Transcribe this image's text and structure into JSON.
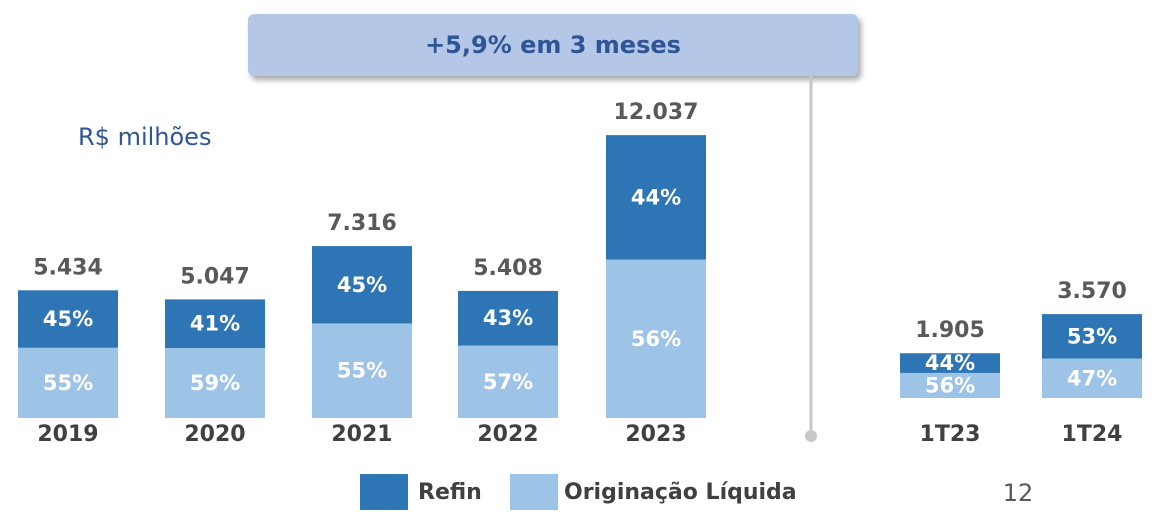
{
  "chart_data": {
    "type": "bar",
    "stacked": true,
    "callout": "+5,9% em 3 meses",
    "unit_label": "R$ milhões",
    "page_number": 12,
    "categories": [
      "2019",
      "2020",
      "2021",
      "2022",
      "2023",
      "1T23",
      "1T24"
    ],
    "totals": {
      "values": [
        5434,
        5047,
        7316,
        5408,
        12037,
        1905,
        3570
      ],
      "value_labels": [
        "5.434",
        "5.047",
        "7.316",
        "5.408",
        "12.037",
        "1.905",
        "3.570"
      ]
    },
    "series": [
      {
        "name": "Originação Líquida",
        "color": "#9dc3e6",
        "values": [
          55,
          59,
          55,
          57,
          56,
          56,
          47
        ],
        "value_labels": [
          "55%",
          "59%",
          "55%",
          "57%",
          "56%",
          "56%",
          "47%"
        ]
      },
      {
        "name": "Refin",
        "color": "#2e75b6",
        "values": [
          45,
          41,
          45,
          43,
          44,
          44,
          53
        ],
        "value_labels": [
          "45%",
          "41%",
          "45%",
          "43%",
          "44%",
          "44%",
          "53%"
        ]
      }
    ]
  }
}
